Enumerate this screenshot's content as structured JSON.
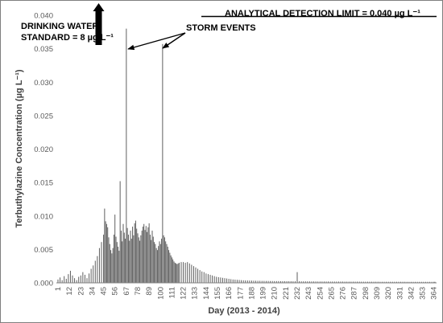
{
  "chart_data": {
    "type": "bar",
    "ylabel": "Terbuthylazine Concentration (µg L⁻¹)",
    "xlabel": "Day (2013 - 2014)",
    "ylim": [
      0,
      0.04
    ],
    "yticks": [
      "0.000",
      "0.005",
      "0.010",
      "0.015",
      "0.020",
      "0.025",
      "0.030",
      "0.035",
      "0.040"
    ],
    "xlim": [
      1,
      365
    ],
    "xticks": [
      1,
      12,
      23,
      34,
      45,
      56,
      67,
      78,
      89,
      100,
      111,
      122,
      133,
      144,
      155,
      166,
      177,
      188,
      199,
      210,
      221,
      232,
      243,
      254,
      265,
      276,
      287,
      298,
      309,
      320,
      331,
      342,
      353,
      364
    ],
    "grid": false,
    "series_color": "#595959",
    "points": [
      [
        1,
        0.0005
      ],
      [
        3,
        0.0008
      ],
      [
        5,
        0.0004
      ],
      [
        7,
        0.001
      ],
      [
        9,
        0.0006
      ],
      [
        11,
        0.0013
      ],
      [
        13,
        0.0018
      ],
      [
        15,
        0.0011
      ],
      [
        17,
        0.0007
      ],
      [
        19,
        0.0004
      ],
      [
        21,
        0.0009
      ],
      [
        23,
        0.0011
      ],
      [
        25,
        0.0016
      ],
      [
        27,
        0.0012
      ],
      [
        29,
        0.0007
      ],
      [
        31,
        0.0014
      ],
      [
        33,
        0.0021
      ],
      [
        35,
        0.0026
      ],
      [
        37,
        0.0033
      ],
      [
        39,
        0.004
      ],
      [
        41,
        0.0052
      ],
      [
        43,
        0.0061
      ],
      [
        45,
        0.0072
      ],
      [
        46,
        0.0111
      ],
      [
        47,
        0.0092
      ],
      [
        48,
        0.0088
      ],
      [
        49,
        0.0083
      ],
      [
        50,
        0.0068
      ],
      [
        51,
        0.0058
      ],
      [
        52,
        0.0049
      ],
      [
        53,
        0.0044
      ],
      [
        54,
        0.0052
      ],
      [
        55,
        0.0072
      ],
      [
        56,
        0.0102
      ],
      [
        57,
        0.0069
      ],
      [
        58,
        0.0061
      ],
      [
        59,
        0.0054
      ],
      [
        60,
        0.0048
      ],
      [
        61,
        0.0152
      ],
      [
        62,
        0.0078
      ],
      [
        63,
        0.0062
      ],
      [
        64,
        0.0088
      ],
      [
        65,
        0.0075
      ],
      [
        66,
        0.0066
      ],
      [
        67,
        0.038
      ],
      [
        68,
        0.0082
      ],
      [
        69,
        0.0072
      ],
      [
        70,
        0.0063
      ],
      [
        71,
        0.0078
      ],
      [
        72,
        0.0066
      ],
      [
        73,
        0.0084
      ],
      [
        74,
        0.0071
      ],
      [
        75,
        0.0089
      ],
      [
        76,
        0.0093
      ],
      [
        77,
        0.0081
      ],
      [
        78,
        0.0074
      ],
      [
        79,
        0.0068
      ],
      [
        80,
        0.0063
      ],
      [
        81,
        0.0071
      ],
      [
        82,
        0.0078
      ],
      [
        83,
        0.0084
      ],
      [
        84,
        0.0088
      ],
      [
        85,
        0.0079
      ],
      [
        86,
        0.0085
      ],
      [
        87,
        0.0076
      ],
      [
        88,
        0.0083
      ],
      [
        89,
        0.0089
      ],
      [
        90,
        0.0072
      ],
      [
        91,
        0.0064
      ],
      [
        92,
        0.0078
      ],
      [
        93,
        0.0069
      ],
      [
        94,
        0.0061
      ],
      [
        95,
        0.0058
      ],
      [
        96,
        0.0052
      ],
      [
        97,
        0.0049
      ],
      [
        98,
        0.0055
      ],
      [
        99,
        0.0062
      ],
      [
        100,
        0.0058
      ],
      [
        101,
        0.0066
      ],
      [
        102,
        0.0357
      ],
      [
        103,
        0.0071
      ],
      [
        104,
        0.0068
      ],
      [
        105,
        0.0062
      ],
      [
        106,
        0.0058
      ],
      [
        107,
        0.0054
      ],
      [
        108,
        0.0049
      ],
      [
        109,
        0.0045
      ],
      [
        110,
        0.0041
      ],
      [
        111,
        0.0038
      ],
      [
        112,
        0.0035
      ],
      [
        113,
        0.0032
      ],
      [
        114,
        0.003
      ],
      [
        115,
        0.0029
      ],
      [
        116,
        0.0028
      ],
      [
        117,
        0.0029
      ],
      [
        118,
        0.003
      ],
      [
        120,
        0.0031
      ],
      [
        122,
        0.0031
      ],
      [
        124,
        0.003
      ],
      [
        126,
        0.0031
      ],
      [
        128,
        0.0029
      ],
      [
        130,
        0.0027
      ],
      [
        132,
        0.0025
      ],
      [
        134,
        0.0023
      ],
      [
        136,
        0.0021
      ],
      [
        138,
        0.0019
      ],
      [
        140,
        0.0017
      ],
      [
        142,
        0.0016
      ],
      [
        144,
        0.0014
      ],
      [
        146,
        0.0013
      ],
      [
        148,
        0.0012
      ],
      [
        150,
        0.0011
      ],
      [
        152,
        0.001
      ],
      [
        154,
        0.0009
      ],
      [
        156,
        0.00085
      ],
      [
        158,
        0.0008
      ],
      [
        160,
        0.00075
      ],
      [
        162,
        0.0007
      ],
      [
        164,
        0.00065
      ],
      [
        166,
        0.0006
      ],
      [
        168,
        0.00055
      ],
      [
        170,
        0.0005
      ],
      [
        172,
        0.00048
      ],
      [
        174,
        0.00045
      ],
      [
        176,
        0.00043
      ],
      [
        178,
        0.0004
      ],
      [
        180,
        0.00038
      ],
      [
        182,
        0.00036
      ],
      [
        184,
        0.00035
      ],
      [
        186,
        0.00034
      ],
      [
        188,
        0.00033
      ],
      [
        190,
        0.00032
      ],
      [
        192,
        0.00031
      ],
      [
        194,
        0.0003
      ],
      [
        196,
        0.0003
      ],
      [
        198,
        0.00029
      ],
      [
        200,
        0.00029
      ],
      [
        202,
        0.00028
      ],
      [
        204,
        0.00028
      ],
      [
        206,
        0.00027
      ],
      [
        208,
        0.00027
      ],
      [
        210,
        0.00026
      ],
      [
        212,
        0.00026
      ],
      [
        214,
        0.00026
      ],
      [
        216,
        0.00025
      ],
      [
        218,
        0.00025
      ],
      [
        220,
        0.00025
      ],
      [
        222,
        0.00024
      ],
      [
        224,
        0.00024
      ],
      [
        226,
        0.00024
      ],
      [
        228,
        0.00023
      ],
      [
        230,
        0.00023
      ],
      [
        232,
        0.0016
      ],
      [
        234,
        0.00023
      ],
      [
        236,
        0.00022
      ],
      [
        238,
        0.00022
      ],
      [
        240,
        0.00022
      ],
      [
        242,
        0.00022
      ],
      [
        244,
        0.00021
      ],
      [
        246,
        0.00021
      ],
      [
        248,
        0.00021
      ],
      [
        250,
        0.00021
      ],
      [
        252,
        0.0002
      ],
      [
        254,
        0.0002
      ],
      [
        256,
        0.0002
      ],
      [
        258,
        0.0002
      ],
      [
        260,
        0.0002
      ],
      [
        262,
        0.0002
      ],
      [
        264,
        0.00019
      ],
      [
        266,
        0.00019
      ],
      [
        268,
        0.00019
      ],
      [
        270,
        0.00019
      ],
      [
        272,
        0.00019
      ],
      [
        274,
        0.00019
      ],
      [
        276,
        0.00019
      ],
      [
        278,
        0.00018
      ],
      [
        280,
        0.00018
      ],
      [
        282,
        0.00018
      ],
      [
        284,
        0.00018
      ],
      [
        286,
        0.00018
      ],
      [
        288,
        0.00018
      ],
      [
        290,
        0.00018
      ],
      [
        292,
        0.00018
      ],
      [
        294,
        0.00017
      ],
      [
        296,
        0.00017
      ],
      [
        298,
        0.00017
      ],
      [
        300,
        0.00017
      ],
      [
        302,
        0.00017
      ],
      [
        304,
        0.00017
      ],
      [
        306,
        0.00017
      ],
      [
        308,
        0.00017
      ],
      [
        310,
        0.00017
      ],
      [
        312,
        0.00016
      ],
      [
        314,
        0.00016
      ],
      [
        316,
        0.00016
      ],
      [
        318,
        0.00016
      ],
      [
        320,
        0.00016
      ],
      [
        322,
        0.00016
      ],
      [
        324,
        0.00016
      ],
      [
        326,
        0.00016
      ],
      [
        328,
        0.00016
      ],
      [
        330,
        0.00016
      ],
      [
        332,
        0.00016
      ],
      [
        334,
        0.00016
      ],
      [
        336,
        0.00016
      ],
      [
        338,
        0.00015
      ],
      [
        340,
        0.00015
      ],
      [
        342,
        0.00015
      ],
      [
        344,
        0.00015
      ],
      [
        346,
        0.00015
      ],
      [
        348,
        0.00015
      ],
      [
        350,
        0.00015
      ],
      [
        352,
        0.00015
      ],
      [
        354,
        0.00015
      ],
      [
        356,
        0.00015
      ],
      [
        358,
        0.00015
      ],
      [
        360,
        0.00015
      ],
      [
        362,
        0.00015
      ],
      [
        364,
        0.00015
      ],
      [
        365,
        0.00015
      ]
    ],
    "annotations": {
      "detection_limit": "ANALYTICAL DETECTION LIMIT = 0.040 µg L⁻¹",
      "drinking_water_line1": "DRINKING WATER",
      "drinking_water_line2": "STANDARD = 8 µg L⁻¹",
      "storm_events": "STORM EVENTS"
    }
  }
}
